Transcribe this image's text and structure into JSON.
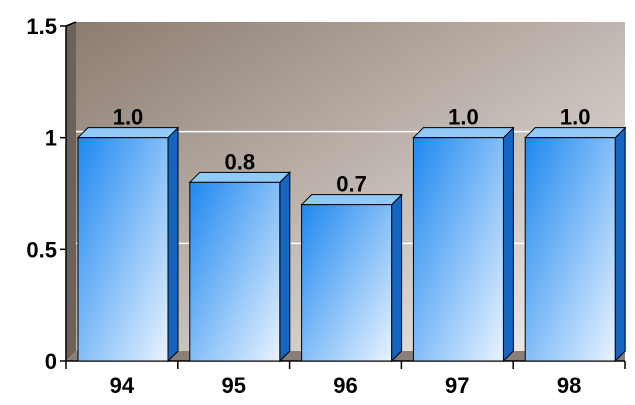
{
  "chart_data": {
    "type": "bar",
    "categories": [
      "94",
      "95",
      "96",
      "97",
      "98"
    ],
    "values": [
      1.0,
      0.8,
      0.7,
      1.0,
      1.0
    ],
    "value_labels": [
      "1.0",
      "0.8",
      "0.7",
      "1.0",
      "1.0"
    ],
    "y_ticks": [
      "0",
      "0.5",
      "1",
      "1.5"
    ],
    "y_tick_values": [
      0,
      0.5,
      1,
      1.5
    ],
    "ylim": [
      0,
      1.5
    ],
    "grid": true,
    "legend": "none",
    "title": "",
    "xlabel": "",
    "ylabel": "",
    "colors": {
      "bar_light": "#e8f3ff",
      "bar_dark": "#1e88f0",
      "bar_side": "#1565c0",
      "bar_top": "#90caf9",
      "plot_bg_dark": "#8c7c70",
      "plot_bg_light": "#f3f1ef",
      "grid": "#ffffff"
    }
  }
}
